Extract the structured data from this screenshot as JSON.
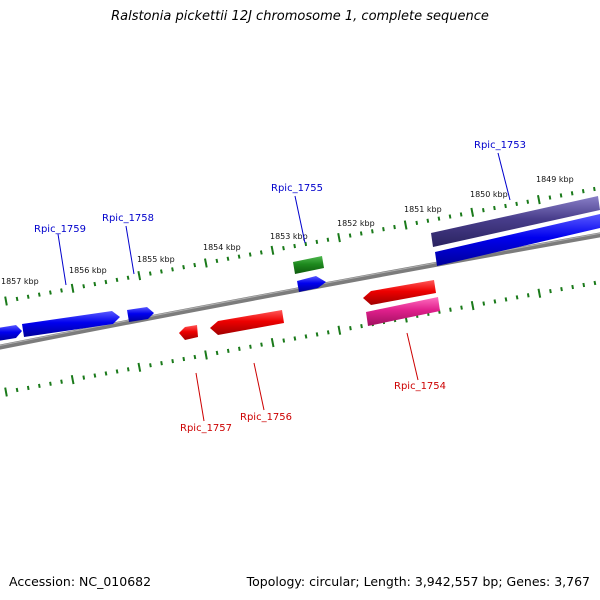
{
  "title": "Ralstonia pickettii 12J chromosome 1, complete sequence",
  "footer": {
    "accession": "Accession: NC_010682",
    "summary": "Topology: circular; Length: 3,942,557 bp; Genes: 3,767"
  },
  "colors": {
    "backbone": "#808080",
    "tick": "#1a7a1a",
    "plus_label": "#0000cc",
    "minus_label": "#cc0000",
    "gene_blue": "#0000ee",
    "gene_red": "#ee0000",
    "gene_green": "#1e8a1e",
    "gene_purple": "#483d8b",
    "gene_pink": "#e0208c"
  },
  "ticks": [
    "1857 kbp",
    "1856 kbp",
    "1855 kbp",
    "1854 kbp",
    "1853 kbp",
    "1852 kbp",
    "1851 kbp",
    "1850 kbp",
    "1849 kbp"
  ],
  "labels": {
    "plus": [
      "Rpic_1759",
      "Rpic_1758",
      "Rpic_1755",
      "Rpic_1753"
    ],
    "minus": [
      "Rpic_1757",
      "Rpic_1756",
      "Rpic_1754"
    ]
  }
}
